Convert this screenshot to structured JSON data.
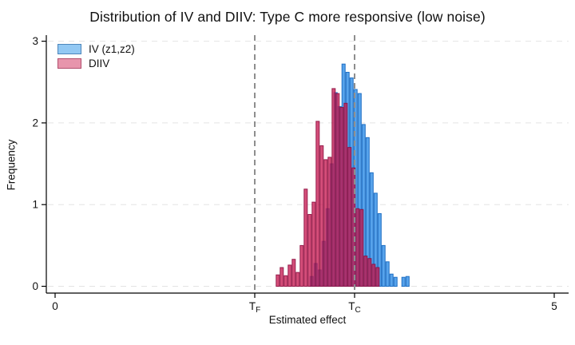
{
  "chart_data": {
    "type": "histogram",
    "title": "Distribution of IV and DIIV: Type C more responsive (low noise)",
    "xlabel": "Estimated effect",
    "ylabel": "Frequency",
    "xlim": [
      -0.09,
      5.15
    ],
    "ylim": [
      0,
      3.05
    ],
    "yticks": [
      0,
      1,
      2,
      3
    ],
    "xticks": [
      {
        "value": 0,
        "label": "0",
        "sub": ""
      },
      {
        "value": 2,
        "label": "T",
        "sub": "F"
      },
      {
        "value": 3,
        "label": "T",
        "sub": "C"
      },
      {
        "value": 5,
        "label": "5",
        "sub": ""
      }
    ],
    "grid": {
      "horizontal_at_yticks": true,
      "style": "dashed",
      "color": "#e4e4e4"
    },
    "reference_lines": [
      {
        "value": 2.0,
        "name": "tau_F",
        "style": "dashed",
        "color": "#8e8e8e"
      },
      {
        "value": 3.0,
        "name": "tau_C",
        "style": "dashed",
        "color": "#8e8e8e"
      }
    ],
    "bin_width": 0.04,
    "series": [
      {
        "name": "IV (z1,z2)",
        "bin_start": 2.55,
        "heights": [
          0.12,
          0.28,
          0.2,
          0.55,
          0.95,
          1.5,
          2.37,
          2.2,
          2.72,
          2.62,
          2.55,
          2.41,
          2.36,
          1.98,
          1.82,
          1.39,
          1.14,
          0.89,
          0.5,
          0.3,
          0.15,
          0.11,
          0.0,
          0.11,
          0.12
        ],
        "fill": "#57a3eb",
        "stroke": "#1f6fc4",
        "fill_opacity": 1.0,
        "legend_fill": "#92c8f3",
        "legend_stroke": "#4d86bb"
      },
      {
        "name": "DIIV",
        "bin_start": 2.21,
        "heights": [
          0.14,
          0.23,
          0.13,
          0.26,
          0.33,
          0.17,
          0.5,
          1.19,
          0.88,
          1.03,
          2.02,
          1.72,
          1.55,
          1.58,
          2.42,
          2.36,
          2.19,
          2.24,
          1.7,
          1.45,
          0.95,
          0.94,
          0.37,
          0.34,
          0.27,
          0.23
        ],
        "fill": "#c81e54",
        "stroke": "#8e1040",
        "fill_opacity": 0.78,
        "legend_fill": "#e795ac",
        "legend_stroke": "#b24f6e"
      }
    ],
    "legend_position": "top-left-inside"
  }
}
